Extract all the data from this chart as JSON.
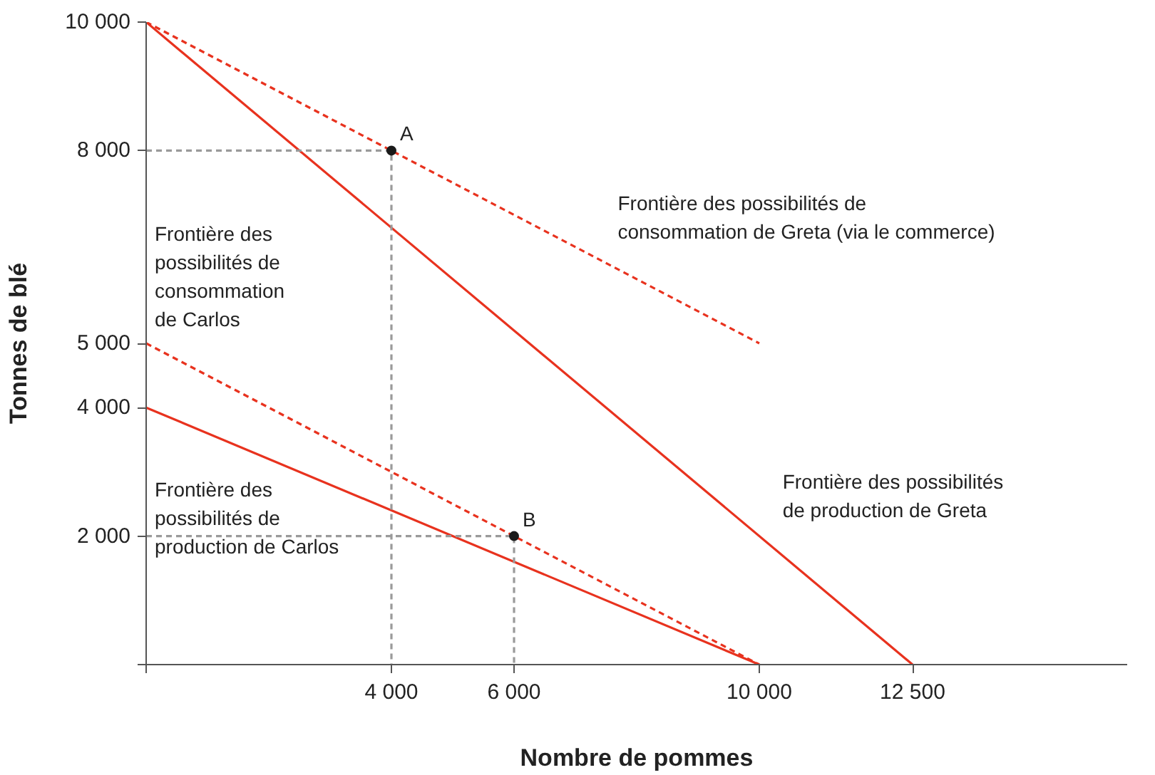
{
  "chart_data": {
    "type": "line",
    "xlabel": "Nombre de pommes",
    "ylabel": "Tonnes de blé",
    "xlim": [
      0,
      16000
    ],
    "ylim": [
      0,
      10000
    ],
    "xticks": [
      {
        "value": 0,
        "label": null
      },
      {
        "value": 4000,
        "label": "4 000"
      },
      {
        "value": 6000,
        "label": "6 000"
      },
      {
        "value": 10000,
        "label": "10 000"
      },
      {
        "value": 12500,
        "label": "12 500"
      }
    ],
    "yticks": [
      {
        "value": 0,
        "label": null
      },
      {
        "value": 2000,
        "label": "2 000"
      },
      {
        "value": 4000,
        "label": "4 000"
      },
      {
        "value": 5000,
        "label": "5 000"
      },
      {
        "value": 8000,
        "label": "8 000"
      },
      {
        "value": 10000,
        "label": "10 000"
      }
    ],
    "grid": false,
    "series": [
      {
        "color": "#e8321e",
        "line_style": "solid",
        "x": [
          0,
          12500
        ],
        "values": [
          10000,
          0
        ]
      },
      {
        "color": "#e8321e",
        "line_style": "dashed",
        "x": [
          0,
          10000
        ],
        "values": [
          10000,
          5000
        ]
      },
      {
        "color": "#e8321e",
        "line_style": "dashed",
        "x": [
          0,
          10000
        ],
        "values": [
          5000,
          0
        ]
      },
      {
        "color": "#e8321e",
        "line_style": "solid",
        "x": [
          0,
          10000
        ],
        "values": [
          4000,
          0
        ]
      },
      {
        "color": "#9a9a9a",
        "line_style": "dashed",
        "x": [
          0,
          4000,
          4000
        ],
        "values": [
          8000,
          8000,
          0
        ]
      },
      {
        "color": "#9a9a9a",
        "line_style": "dashed",
        "x": [
          0,
          6000,
          6000
        ],
        "values": [
          2000,
          2000,
          0
        ]
      },
      {
        "type": "scatter",
        "color": "#1a1a1a",
        "marker": "circle",
        "x": [
          4000,
          6000
        ],
        "values": [
          8000,
          2000
        ]
      }
    ],
    "annotations": [
      {
        "text": "A",
        "x": 4000,
        "y": 8000
      },
      {
        "text": "B",
        "x": 6000,
        "y": 2000
      },
      "Frontière des possibilités de\nconsommation de Greta (via le commerce)",
      "Frontière des\npossibilités de\nconsommation\nde Carlos",
      "Frontière des\npossibilités de\nproduction de Carlos",
      "Frontière des possibilités\nde production de Greta"
    ]
  }
}
